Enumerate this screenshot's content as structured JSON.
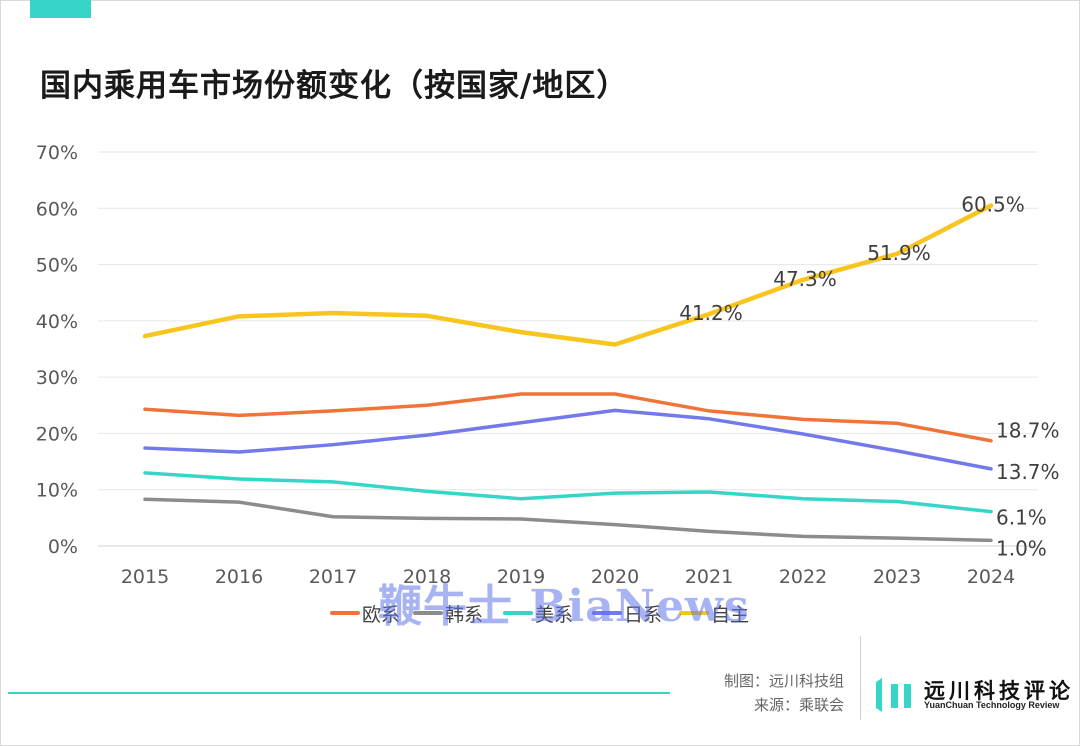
{
  "chart_data": {
    "type": "line",
    "title": "国内乘用车市场份额变化（按国家/地区）",
    "xlabel": "",
    "ylabel": "",
    "x": [
      "2015",
      "2016",
      "2017",
      "2018",
      "2019",
      "2020",
      "2021",
      "2022",
      "2023",
      "2024"
    ],
    "yticks": [
      "0%",
      "10%",
      "20%",
      "30%",
      "40%",
      "50%",
      "60%",
      "70%"
    ],
    "ylim": [
      0,
      70
    ],
    "grid": true,
    "legend_position": "bottom",
    "series": [
      {
        "name": "欧系",
        "color": "#f0743a",
        "values": [
          24.3,
          23.2,
          24.0,
          25.0,
          27.0,
          27.0,
          24.0,
          22.5,
          21.8,
          18.7
        ],
        "labels": {
          "9": "18.7%"
        }
      },
      {
        "name": "韩系",
        "color": "#8c8c8c",
        "values": [
          8.3,
          7.8,
          5.2,
          4.9,
          4.8,
          3.8,
          2.6,
          1.7,
          1.4,
          1.0
        ],
        "labels": {
          "9": "1.0%"
        }
      },
      {
        "name": "美系",
        "color": "#35d6c8",
        "values": [
          13.0,
          11.9,
          11.4,
          9.7,
          8.4,
          9.4,
          9.6,
          8.4,
          7.9,
          6.1
        ],
        "labels": {
          "9": "6.1%"
        }
      },
      {
        "name": "日系",
        "color": "#7379ec",
        "values": [
          17.4,
          16.7,
          18.0,
          19.7,
          21.9,
          24.1,
          22.6,
          19.9,
          16.9,
          13.7
        ],
        "labels": {
          "9": "13.7%"
        }
      },
      {
        "name": "自主",
        "color": "#f7c51e",
        "values": [
          37.3,
          40.8,
          41.4,
          40.9,
          38.0,
          35.8,
          41.2,
          47.3,
          51.9,
          60.5
        ],
        "labels": {
          "6": "41.2%",
          "7": "47.3%",
          "8": "51.9%",
          "9": "60.5%"
        }
      }
    ]
  },
  "watermark": "鞭牛士 BiaNews",
  "footer": {
    "made_by": "制图：远川科技组",
    "source": "来源：乘联会"
  },
  "logo": {
    "name": "远川科技评论",
    "english": "YuanChuan Technology Review"
  }
}
